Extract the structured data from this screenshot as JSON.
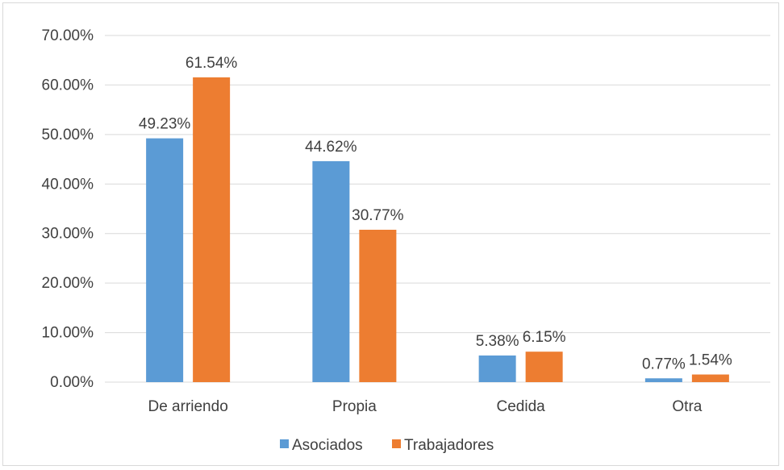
{
  "chart_data": {
    "type": "bar",
    "categories": [
      "De arriendo",
      "Propia",
      "Cedida",
      "Otra"
    ],
    "series": [
      {
        "name": "Asociados",
        "color": "#5b9bd5",
        "values": [
          0.4923,
          0.4462,
          0.0538,
          0.0077
        ],
        "labels": [
          "49.23%",
          "44.62%",
          "5.38%",
          "0.77%"
        ]
      },
      {
        "name": "Trabajadores",
        "color": "#ed7d31",
        "values": [
          0.6154,
          0.3077,
          0.0615,
          0.0154
        ],
        "labels": [
          "61.54%",
          "30.77%",
          "6.15%",
          "1.54%"
        ]
      }
    ],
    "y_ticks": [
      0,
      0.1,
      0.2,
      0.3,
      0.4,
      0.5,
      0.6,
      0.7
    ],
    "y_tick_labels": [
      "0.00%",
      "10.00%",
      "20.00%",
      "30.00%",
      "40.00%",
      "50.00%",
      "60.00%",
      "70.00%"
    ],
    "ylim": [
      0,
      0.7
    ],
    "grid": true,
    "legend_position": "bottom",
    "gridline_color": "#d9d9d9",
    "text_color": "#404040"
  }
}
